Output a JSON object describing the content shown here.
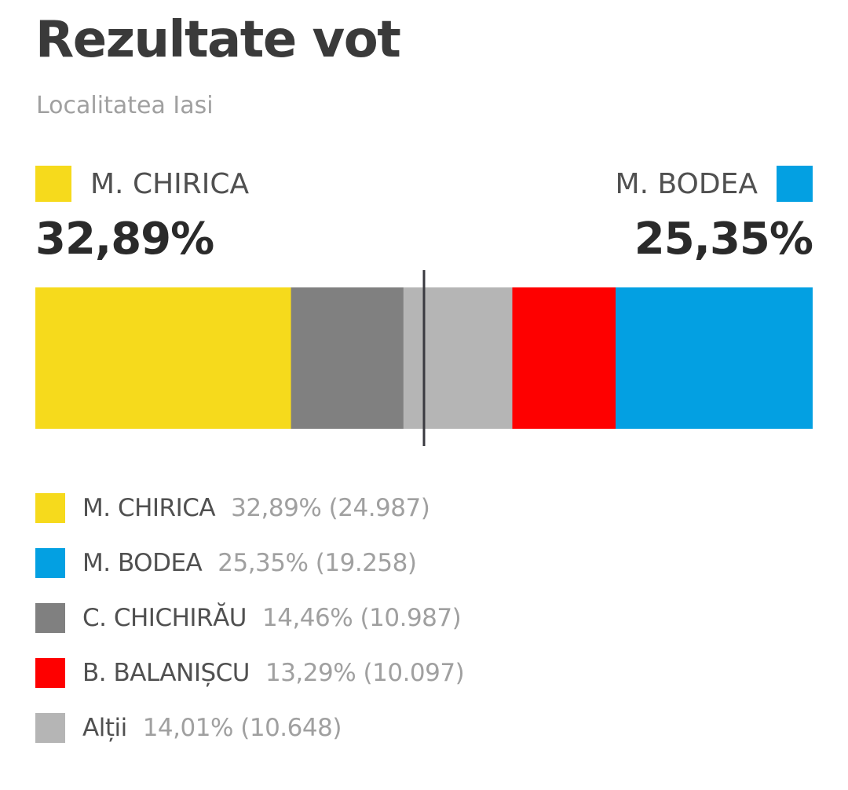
{
  "chart_data": {
    "type": "bar",
    "title": "Rezultate vot",
    "subtitle": "Localitatea Iasi",
    "header_left": {
      "name": "M. CHIRICA",
      "percent": "32,89%",
      "color": "#f6da1c"
    },
    "header_right": {
      "name": "M. BODEA",
      "percent": "25,35%",
      "color": "#03a0e2"
    },
    "stack_order": [
      "M. CHIRICA",
      "C. CHICHIRĂU",
      "Alții",
      "B. BALANIȘCU",
      "M. BODEA"
    ],
    "majority_marker": 50,
    "series": [
      {
        "name": "M. CHIRICA",
        "value": 32.89,
        "percent_label": "32,89%",
        "votes": "(24.987)",
        "color": "#f6da1c"
      },
      {
        "name": "M. BODEA",
        "value": 25.35,
        "percent_label": "25,35%",
        "votes": "(19.258)",
        "color": "#03a0e2"
      },
      {
        "name": "C. CHICHIRĂU",
        "value": 14.46,
        "percent_label": "14,46%",
        "votes": "(10.987)",
        "color": "#808080"
      },
      {
        "name": "B. BALANIȘCU",
        "value": 13.29,
        "percent_label": "13,29%",
        "votes": "(10.097)",
        "color": "#fe0000"
      },
      {
        "name": "Alții",
        "value": 14.01,
        "percent_label": "14,01%",
        "votes": "(10.648)",
        "color": "#b5b5b5"
      }
    ]
  }
}
